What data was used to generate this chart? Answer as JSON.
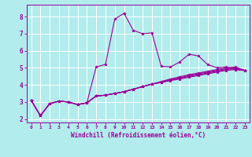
{
  "background_color": "#b2ecec",
  "grid_color": "#ffffff",
  "line_color": "#990099",
  "marker": "*",
  "xlabel": "Windchill (Refroidissement éolien,°C)",
  "xlabel_color": "#990099",
  "tick_color": "#990099",
  "xlim": [
    -0.5,
    23.5
  ],
  "ylim": [
    1.8,
    8.7
  ],
  "yticks": [
    2,
    3,
    4,
    5,
    6,
    7,
    8
  ],
  "xticks": [
    0,
    1,
    2,
    3,
    4,
    5,
    6,
    7,
    8,
    9,
    10,
    11,
    12,
    13,
    14,
    15,
    16,
    17,
    18,
    19,
    20,
    21,
    22,
    23
  ],
  "series": [
    [
      3.1,
      2.2,
      2.9,
      3.05,
      3.0,
      2.85,
      2.95,
      5.05,
      5.2,
      7.85,
      8.2,
      7.2,
      7.0,
      7.05,
      5.1,
      5.05,
      5.35,
      5.8,
      5.7,
      5.2,
      5.0,
      5.05,
      4.9,
      4.85
    ],
    [
      3.1,
      2.2,
      2.9,
      3.05,
      3.0,
      2.85,
      2.95,
      3.35,
      3.4,
      3.5,
      3.6,
      3.75,
      3.9,
      4.05,
      4.15,
      4.25,
      4.35,
      4.45,
      4.55,
      4.65,
      4.75,
      4.85,
      4.9,
      4.85
    ],
    [
      3.1,
      2.2,
      2.9,
      3.05,
      3.0,
      2.85,
      2.95,
      3.35,
      3.4,
      3.5,
      3.6,
      3.75,
      3.9,
      4.05,
      4.15,
      4.28,
      4.38,
      4.5,
      4.6,
      4.7,
      4.8,
      4.9,
      4.95,
      4.85
    ],
    [
      3.1,
      2.2,
      2.9,
      3.05,
      3.0,
      2.85,
      2.95,
      3.35,
      3.4,
      3.5,
      3.6,
      3.75,
      3.9,
      4.05,
      4.15,
      4.3,
      4.42,
      4.55,
      4.65,
      4.75,
      4.85,
      4.95,
      5.0,
      4.85
    ],
    [
      3.1,
      2.2,
      2.9,
      3.05,
      3.0,
      2.85,
      2.95,
      3.35,
      3.4,
      3.5,
      3.6,
      3.75,
      3.9,
      4.05,
      4.2,
      4.35,
      4.48,
      4.6,
      4.7,
      4.8,
      4.9,
      5.0,
      5.05,
      4.85
    ]
  ]
}
